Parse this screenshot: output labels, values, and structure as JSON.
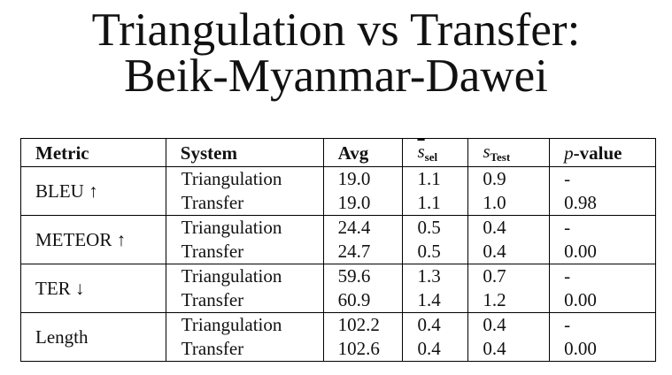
{
  "title": {
    "line1": "Triangulation vs Transfer:",
    "line2": "Beik-Myanmar-Dawei"
  },
  "table": {
    "headers": {
      "metric": "Metric",
      "system": "System",
      "avg": "Avg",
      "ssel_base": "s",
      "ssel_sub": "sel",
      "stest_base": "s",
      "stest_sub": "Test",
      "p_italic": "p",
      "p_rest": "-value"
    },
    "groups": [
      {
        "metric": "BLEU ↑",
        "rows": [
          {
            "system": "Triangulation",
            "avg": "19.0",
            "ssel": "1.1",
            "stest": "0.9",
            "p": "-"
          },
          {
            "system": "Transfer",
            "avg": "19.0",
            "ssel": "1.1",
            "stest": "1.0",
            "p": "0.98"
          }
        ]
      },
      {
        "metric": "METEOR ↑",
        "rows": [
          {
            "system": "Triangulation",
            "avg": "24.4",
            "ssel": "0.5",
            "stest": "0.4",
            "p": "-"
          },
          {
            "system": "Transfer",
            "avg": "24.7",
            "ssel": "0.5",
            "stest": "0.4",
            "p": "0.00"
          }
        ]
      },
      {
        "metric": "TER ↓",
        "rows": [
          {
            "system": "Triangulation",
            "avg": "59.6",
            "ssel": "1.3",
            "stest": "0.7",
            "p": "-"
          },
          {
            "system": "Transfer",
            "avg": "60.9",
            "ssel": "1.4",
            "stest": "1.2",
            "p": "0.00"
          }
        ]
      },
      {
        "metric": "Length",
        "rows": [
          {
            "system": "Triangulation",
            "avg": "102.2",
            "ssel": "0.4",
            "stest": "0.4",
            "p": "-"
          },
          {
            "system": "Transfer",
            "avg": "102.6",
            "ssel": "0.4",
            "stest": "0.4",
            "p": "0.00"
          }
        ]
      }
    ]
  }
}
